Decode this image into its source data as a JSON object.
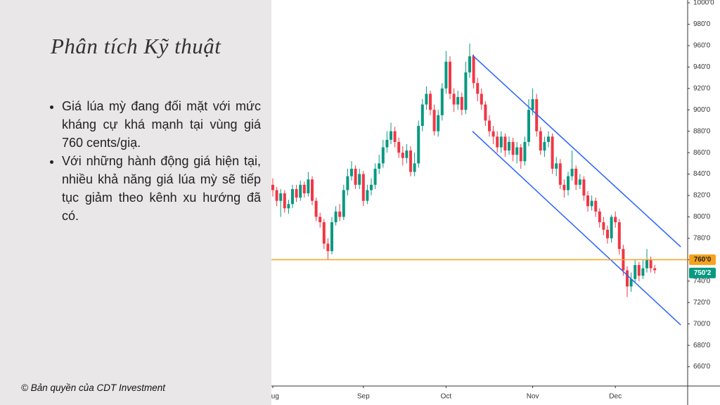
{
  "slide": {
    "title": "Phân tích Kỹ thuật",
    "bullets": [
      "Giá lúa mỳ đang đối mặt với mức kháng cự khá mạnh tại vùng giá 760 cents/giạ.",
      "Với những hành động giá hiện tại, nhiều khả năng giá lúa mỳ sẽ tiếp tục giảm theo kênh xu hướng đã có."
    ],
    "copyright": "© Bản quyền của CDT Investment"
  },
  "chart_data": {
    "type": "candlestick",
    "categories": [
      "Aug",
      null,
      null,
      null,
      null,
      null,
      null,
      null,
      null,
      null,
      null,
      null,
      null,
      null,
      null,
      null,
      null,
      null,
      null,
      null,
      null,
      null,
      null,
      "Sep",
      null,
      null,
      null,
      null,
      null,
      null,
      null,
      null,
      null,
      null,
      null,
      null,
      null,
      null,
      null,
      null,
      null,
      null,
      null,
      null,
      "Oct",
      null,
      null,
      null,
      null,
      null,
      null,
      null,
      null,
      null,
      null,
      null,
      null,
      null,
      null,
      null,
      null,
      null,
      null,
      null,
      null,
      null,
      "Nov",
      null,
      null,
      null,
      null,
      null,
      null,
      null,
      null,
      null,
      null,
      null,
      null,
      null,
      null,
      null,
      null,
      null,
      null,
      null,
      null,
      "Dec",
      null,
      null,
      null,
      null,
      null,
      null,
      null,
      null,
      null,
      null
    ],
    "open": [
      830,
      825,
      815,
      822,
      808,
      812,
      826,
      818,
      830,
      822,
      835,
      815,
      800,
      795,
      775,
      768,
      795,
      805,
      800,
      825,
      838,
      845,
      830,
      840,
      815,
      825,
      830,
      845,
      850,
      865,
      872,
      880,
      870,
      860,
      855,
      862,
      842,
      850,
      885,
      905,
      915,
      900,
      880,
      895,
      920,
      945,
      915,
      905,
      912,
      900,
      935,
      950,
      925,
      915,
      905,
      890,
      880,
      875,
      865,
      875,
      862,
      870,
      858,
      865,
      852,
      870,
      900,
      910,
      880,
      862,
      870,
      875,
      845,
      850,
      830,
      825,
      838,
      845,
      830,
      835,
      820,
      810,
      815,
      805,
      795,
      788,
      780,
      800,
      795,
      770,
      750,
      735,
      742,
      755,
      745,
      752,
      760,
      752
    ],
    "high": [
      836,
      828,
      826,
      825,
      816,
      830,
      830,
      834,
      833,
      842,
      838,
      818,
      804,
      798,
      780,
      800,
      810,
      812,
      830,
      845,
      852,
      848,
      845,
      843,
      830,
      836,
      850,
      858,
      872,
      880,
      888,
      884,
      874,
      866,
      868,
      866,
      860,
      890,
      910,
      922,
      918,
      905,
      900,
      925,
      955,
      950,
      920,
      918,
      916,
      945,
      962,
      952,
      930,
      920,
      908,
      895,
      885,
      880,
      880,
      878,
      875,
      874,
      870,
      868,
      875,
      910,
      920,
      915,
      884,
      875,
      880,
      878,
      856,
      854,
      835,
      842,
      862,
      848,
      840,
      838,
      824,
      820,
      818,
      808,
      800,
      792,
      802,
      805,
      798,
      774,
      754,
      748,
      760,
      758,
      760,
      770,
      763,
      755
    ],
    "low": [
      819,
      810,
      800,
      804,
      803,
      808,
      814,
      815,
      818,
      819,
      811,
      796,
      790,
      770,
      760,
      765,
      792,
      796,
      797,
      820,
      834,
      826,
      826,
      810,
      812,
      820,
      826,
      840,
      846,
      860,
      868,
      865,
      855,
      848,
      850,
      838,
      838,
      846,
      880,
      900,
      895,
      876,
      875,
      890,
      915,
      910,
      898,
      900,
      895,
      896,
      930,
      920,
      908,
      900,
      885,
      875,
      868,
      860,
      860,
      856,
      858,
      852,
      850,
      845,
      848,
      866,
      895,
      875,
      858,
      856,
      865,
      840,
      838,
      826,
      818,
      820,
      834,
      825,
      826,
      815,
      805,
      806,
      800,
      790,
      783,
      775,
      776,
      790,
      765,
      745,
      725,
      730,
      738,
      740,
      742,
      748,
      748,
      747
    ],
    "close": [
      825,
      815,
      822,
      808,
      812,
      826,
      818,
      830,
      822,
      835,
      815,
      800,
      795,
      775,
      768,
      795,
      805,
      800,
      825,
      838,
      845,
      830,
      840,
      815,
      825,
      830,
      845,
      850,
      865,
      872,
      880,
      870,
      860,
      855,
      862,
      842,
      850,
      885,
      905,
      915,
      900,
      880,
      895,
      920,
      945,
      915,
      905,
      912,
      900,
      935,
      950,
      925,
      915,
      905,
      890,
      880,
      875,
      865,
      875,
      862,
      870,
      858,
      865,
      852,
      870,
      900,
      910,
      880,
      862,
      870,
      875,
      845,
      850,
      830,
      825,
      838,
      845,
      830,
      835,
      820,
      810,
      815,
      805,
      795,
      788,
      780,
      800,
      795,
      770,
      750,
      735,
      742,
      755,
      745,
      752,
      760,
      752,
      750.2
    ],
    "up_color": "#089981",
    "down_color": "#f23645",
    "ylim": [
      642,
      1000
    ],
    "yticks": [
      {
        "value": 660,
        "label": "660'0"
      },
      {
        "value": 680,
        "label": "680'0"
      },
      {
        "value": 700,
        "label": "700'0"
      },
      {
        "value": 720,
        "label": "720'0"
      },
      {
        "value": 740,
        "label": "740'0"
      },
      {
        "value": 760,
        "label": "760'0"
      },
      {
        "value": 780,
        "label": "780'0"
      },
      {
        "value": 800,
        "label": "800'0"
      },
      {
        "value": 820,
        "label": "820'0"
      },
      {
        "value": 840,
        "label": "840'0"
      },
      {
        "value": 860,
        "label": "860'0"
      },
      {
        "value": 880,
        "label": "880'0"
      },
      {
        "value": 900,
        "label": "900'0"
      },
      {
        "value": 920,
        "label": "920'0"
      },
      {
        "value": 940,
        "label": "940'0"
      },
      {
        "value": 960,
        "label": "960'0"
      },
      {
        "value": 980,
        "label": "980'0"
      },
      {
        "value": 1000,
        "label": "1000'0"
      }
    ],
    "resistance": {
      "value": 760,
      "label": "760'0",
      "color": "#f7a21b"
    },
    "last_price": {
      "value": 750.2,
      "label": "750'2",
      "color": "#089981"
    },
    "channel": {
      "color": "#2962ff",
      "lines": [
        {
          "x": [
            50.7,
            103.6
          ],
          "y": [
            951,
            772
          ]
        },
        {
          "x": [
            50.7,
            103.6
          ],
          "y": [
            880,
            699
          ]
        }
      ]
    }
  }
}
